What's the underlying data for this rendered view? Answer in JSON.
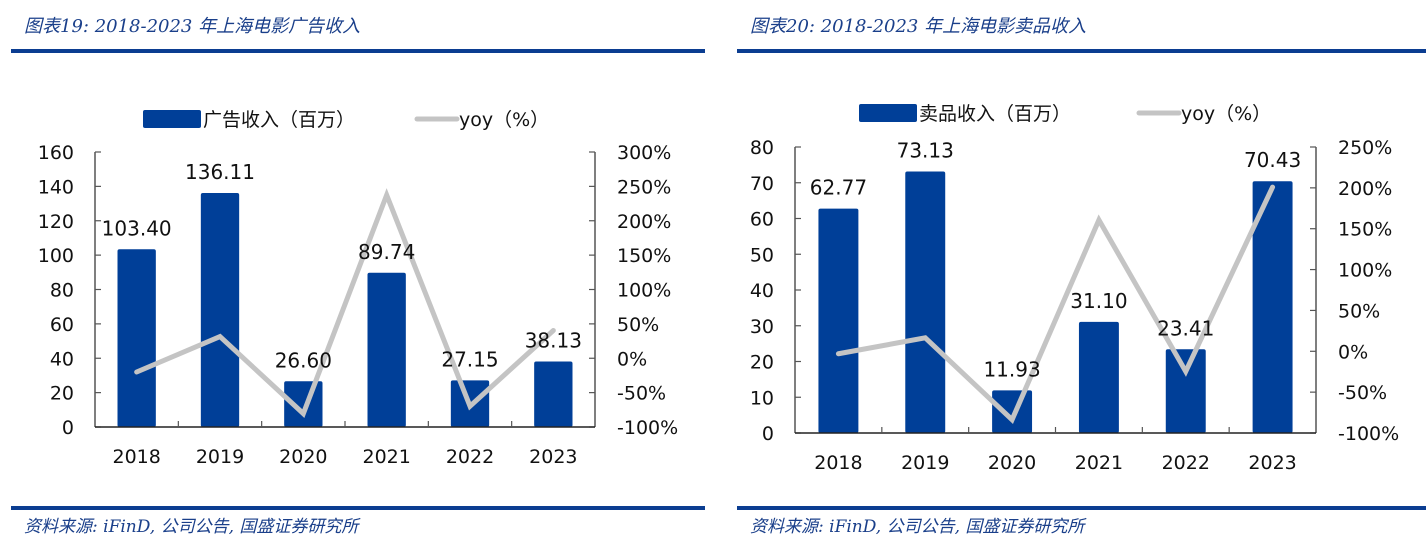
{
  "colors": {
    "bar": "#003f98",
    "line": "#c4c4c4",
    "accent": "#0b3d91",
    "axis": "#555555"
  },
  "chart_data": [
    {
      "type": "bar+line",
      "title": "图表19: 2018-2023 年上海电影广告收入",
      "source": "资料来源: iFinD, 公司公告, 国盛证券研究所",
      "categories": [
        "2018",
        "2019",
        "2020",
        "2021",
        "2022",
        "2023"
      ],
      "series": [
        {
          "name": "广告收入（百万）",
          "type": "bar",
          "axis": "left",
          "values": [
            103.4,
            136.11,
            26.6,
            89.74,
            27.15,
            38.13
          ],
          "labels": [
            "103.40",
            "136.11",
            "26.60",
            "89.74",
            "27.15",
            "38.13"
          ]
        },
        {
          "name": "yoy（%）",
          "type": "line",
          "axis": "right",
          "values": [
            -20,
            31.6,
            -80.5,
            237.4,
            -69.7,
            40.4
          ]
        }
      ],
      "left_axis": {
        "ylim": [
          0,
          160
        ],
        "ticks": [
          "0",
          "20",
          "40",
          "60",
          "80",
          "100",
          "120",
          "140",
          "160"
        ]
      },
      "right_axis": {
        "ylim": [
          -100,
          300
        ],
        "ticks": [
          "-100%",
          "-50%",
          "0%",
          "50%",
          "100%",
          "150%",
          "200%",
          "250%",
          "300%"
        ]
      },
      "legend": "top-center",
      "grid": false
    },
    {
      "type": "bar+line",
      "title": "图表20: 2018-2023 年上海电影卖品收入",
      "source": "资料来源: iFinD, 公司公告, 国盛证券研究所",
      "categories": [
        "2018",
        "2019",
        "2020",
        "2021",
        "2022",
        "2023"
      ],
      "series": [
        {
          "name": "卖品收入（百万）",
          "type": "bar",
          "axis": "left",
          "values": [
            62.77,
            73.13,
            11.93,
            31.1,
            23.41,
            70.43
          ],
          "labels": [
            "62.77",
            "73.13",
            "11.93",
            "31.10",
            "23.41",
            "70.43"
          ]
        },
        {
          "name": "yoy（%）",
          "type": "line",
          "axis": "right",
          "values": [
            -3,
            16.5,
            -83.7,
            160.7,
            -24.7,
            200.9
          ]
        }
      ],
      "left_axis": {
        "ylim": [
          0,
          80
        ],
        "ticks": [
          "0",
          "10",
          "20",
          "30",
          "40",
          "50",
          "60",
          "70",
          "80"
        ]
      },
      "right_axis": {
        "ylim": [
          -100,
          250
        ],
        "ticks": [
          "-100%",
          "-50%",
          "0%",
          "50%",
          "100%",
          "150%",
          "200%",
          "250%"
        ]
      },
      "legend": "top-center",
      "grid": false
    }
  ]
}
